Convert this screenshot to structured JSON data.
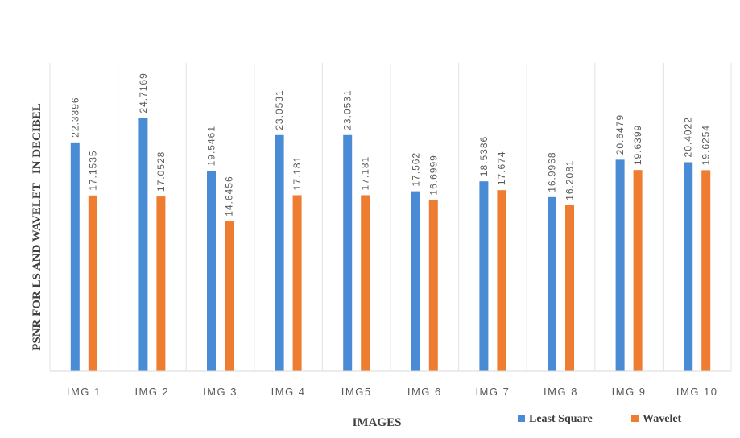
{
  "chart_data": {
    "type": "bar",
    "xlabel": "IMAGES",
    "ylabel": "PSNR FOR LS AND WAVELET   IN DECIBEL",
    "categories": [
      "IMG 1",
      "IMG 2",
      "IMG 3",
      "IMG 4",
      "IMG5",
      "IMG 6",
      "IMG 7",
      "IMG 8",
      "IMG 9",
      "IMG 10"
    ],
    "series": [
      {
        "name": "Least Square",
        "color": "#4a8bd6",
        "values": [
          22.3396,
          24.7169,
          19.5461,
          23.0531,
          23.0531,
          17.562,
          18.5386,
          16.9968,
          20.6479,
          20.4022
        ],
        "labels": [
          "22.3396",
          "24.7169",
          "19.5461",
          "23.0531",
          "23.0531",
          "17.562",
          "18.5386",
          "16.9968",
          "20.6479",
          "20.4022"
        ]
      },
      {
        "name": "Wavelet",
        "color": "#ee7d31",
        "values": [
          17.1535,
          17.0528,
          14.6456,
          17.181,
          17.181,
          16.6999,
          17.674,
          16.2081,
          19.6399,
          19.6254
        ],
        "labels": [
          "17.1535",
          "17.0528",
          "14.6456",
          "17.181",
          "17.181",
          "16.6999",
          "17.674",
          "16.2081",
          "19.6399",
          "19.6254"
        ]
      }
    ],
    "ylim": [
      0,
      28
    ],
    "grid": "vertical",
    "legend": "bottom-right"
  }
}
